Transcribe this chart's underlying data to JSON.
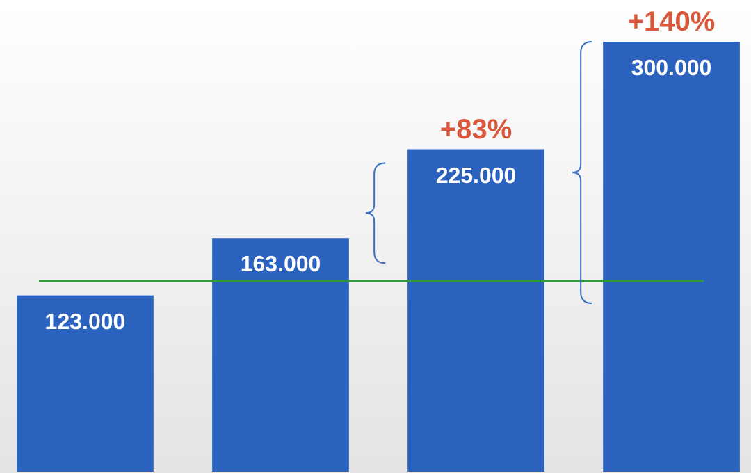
{
  "chart_data": {
    "type": "bar",
    "categories": [
      null,
      null,
      null,
      null
    ],
    "values": [
      123000,
      163000,
      225000,
      300000
    ],
    "color": "#2b62bd",
    "value_labels": [
      "123.000",
      "163.000",
      "225.000",
      "300.000"
    ],
    "ref_lines": [
      {
        "axis": "y",
        "value": 133000,
        "color": "#2e9a3a"
      }
    ],
    "annotations": [
      "+83%",
      "+140%"
    ]
  }
}
